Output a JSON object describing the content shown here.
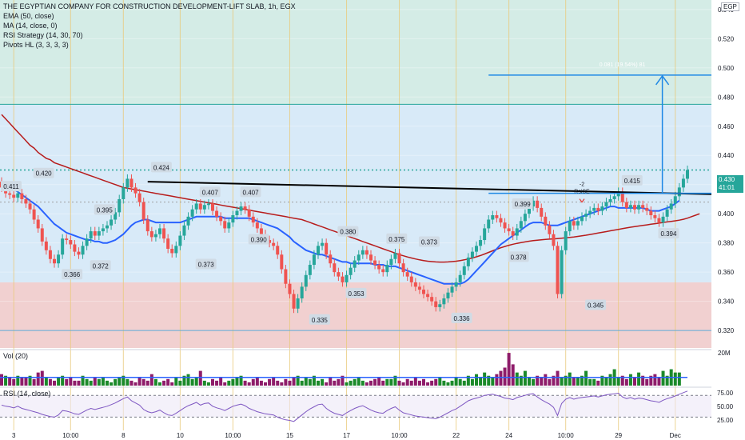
{
  "legend": {
    "title": "THE EGYPTIAN COMPANY FOR CONSTRUCTION DEVELOPMENT-LIFT SLAB, 1h, EGX",
    "ema": "EMA (50, close)",
    "ma": "MA (14, close, 0)",
    "rsi_strategy": "RSI Strategy (14, 30, 70)",
    "pivots": "Pivots HL (3, 3, 3, 3)"
  },
  "currency": "EGP",
  "last_price": "0.430",
  "countdown": "41:01",
  "volume_label": "Vol (20)",
  "rsi_label": "RSI (14, close)",
  "colors": {
    "up": "#26a69a",
    "down": "#ef5350",
    "ema": "#b71c1c",
    "ma": "#2962ff",
    "vol_up": "#1b8a2a",
    "vol_down": "#8e1c6a",
    "rsi": "#7e57c2",
    "top_zone": "#d4ece6",
    "mid_zone": "#d8eaf8",
    "low_zone": "#f1d0d0"
  },
  "chart_data": {
    "type": "line",
    "price_axis": {
      "ylim": [
        0.308,
        0.5465
      ],
      "ticks": [
        "0.540",
        "0.520",
        "0.500",
        "0.480",
        "0.460",
        "0.440",
        "0.420",
        "0.400",
        "0.380",
        "0.360",
        "0.340",
        "0.320"
      ]
    },
    "x_tick_labels": [
      "3",
      "10:00",
      "8",
      "10",
      "10:00",
      "15",
      "17",
      "10:00",
      "22",
      "24",
      "10:00",
      "29",
      "Dec"
    ],
    "close_series": [
      0.418,
      0.414,
      0.413,
      0.411,
      0.414,
      0.41,
      0.407,
      0.403,
      0.396,
      0.39,
      0.381,
      0.375,
      0.369,
      0.366,
      0.372,
      0.383,
      0.382,
      0.379,
      0.374,
      0.372,
      0.378,
      0.383,
      0.388,
      0.385,
      0.388,
      0.39,
      0.392,
      0.396,
      0.401,
      0.41,
      0.418,
      0.424,
      0.418,
      0.414,
      0.408,
      0.396,
      0.388,
      0.384,
      0.386,
      0.39,
      0.383,
      0.376,
      0.373,
      0.378,
      0.385,
      0.392,
      0.398,
      0.403,
      0.407,
      0.403,
      0.406,
      0.407,
      0.402,
      0.398,
      0.395,
      0.39,
      0.394,
      0.399,
      0.402,
      0.405,
      0.403,
      0.398,
      0.394,
      0.39,
      0.386,
      0.382,
      0.38,
      0.378,
      0.372,
      0.362,
      0.352,
      0.345,
      0.335,
      0.342,
      0.35,
      0.358,
      0.365,
      0.372,
      0.378,
      0.38,
      0.372,
      0.366,
      0.36,
      0.357,
      0.353,
      0.358,
      0.363,
      0.368,
      0.372,
      0.375,
      0.372,
      0.368,
      0.365,
      0.362,
      0.36,
      0.365,
      0.369,
      0.373,
      0.366,
      0.36,
      0.357,
      0.353,
      0.35,
      0.348,
      0.345,
      0.343,
      0.34,
      0.336,
      0.338,
      0.342,
      0.346,
      0.35,
      0.353,
      0.358,
      0.364,
      0.37,
      0.374,
      0.378,
      0.382,
      0.39,
      0.396,
      0.399,
      0.397,
      0.394,
      0.39,
      0.388,
      0.385,
      0.39,
      0.395,
      0.4,
      0.405,
      0.409,
      0.404,
      0.398,
      0.392,
      0.386,
      0.378,
      0.345,
      0.375,
      0.388,
      0.395,
      0.392,
      0.395,
      0.398,
      0.4,
      0.402,
      0.404,
      0.402,
      0.405,
      0.408,
      0.41,
      0.412,
      0.415,
      0.408,
      0.404,
      0.406,
      0.403,
      0.406,
      0.404,
      0.402,
      0.399,
      0.397,
      0.394,
      0.398,
      0.403,
      0.407,
      0.412,
      0.418,
      0.424,
      0.43
    ],
    "ema_50": [
      0.468,
      0.465,
      0.462,
      0.459,
      0.456,
      0.453,
      0.45,
      0.447,
      0.445,
      0.442,
      0.44,
      0.438,
      0.437,
      0.435,
      0.434,
      0.433,
      0.432,
      0.431,
      0.43,
      0.429,
      0.428,
      0.427,
      0.426,
      0.425,
      0.424,
      0.423,
      0.422,
      0.421,
      0.42,
      0.419,
      0.418,
      0.4175,
      0.417,
      0.4165,
      0.416,
      0.4155,
      0.415,
      0.4145,
      0.414,
      0.4135,
      0.413,
      0.4125,
      0.412,
      0.4115,
      0.411,
      0.4105,
      0.41,
      0.4095,
      0.409,
      0.4085,
      0.408,
      0.4075,
      0.407,
      0.4065,
      0.406,
      0.4055,
      0.405,
      0.4045,
      0.404,
      0.4035,
      0.403,
      0.4025,
      0.402,
      0.4015,
      0.401,
      0.4005,
      0.4,
      0.3995,
      0.399,
      0.3985,
      0.398,
      0.3975,
      0.397,
      0.3965,
      0.396,
      0.395,
      0.394,
      0.393,
      0.392,
      0.391,
      0.39,
      0.389,
      0.388,
      0.387,
      0.386,
      0.385,
      0.384,
      0.383,
      0.382,
      0.381,
      0.38,
      0.379,
      0.378,
      0.377,
      0.376,
      0.375,
      0.374,
      0.373,
      0.372,
      0.3712,
      0.3704,
      0.3697,
      0.369,
      0.3684,
      0.3679,
      0.3675,
      0.3672,
      0.367,
      0.3669,
      0.3669,
      0.367,
      0.3672,
      0.3675,
      0.3679,
      0.3684,
      0.369,
      0.3697,
      0.3705,
      0.3714,
      0.3724,
      0.3735,
      0.3746,
      0.3757,
      0.3767,
      0.3776,
      0.3784,
      0.3791,
      0.3797,
      0.3802,
      0.3807,
      0.3812,
      0.3816,
      0.3819,
      0.3822,
      0.3824,
      0.3826,
      0.3828,
      0.383,
      0.3832,
      0.3835,
      0.3838,
      0.3841,
      0.3845,
      0.3849,
      0.3853,
      0.3858,
      0.3863,
      0.3868,
      0.3873,
      0.3878,
      0.3883,
      0.3888,
      0.3893,
      0.3898,
      0.3903,
      0.3908,
      0.3912,
      0.3916,
      0.392,
      0.3924,
      0.3928,
      0.3932,
      0.3936,
      0.394,
      0.3944,
      0.3948,
      0.3952,
      0.3956,
      0.3962,
      0.397,
      0.398,
      0.399,
      0.4
    ],
    "ma_14": [
      0.42,
      0.419,
      0.418,
      0.417,
      0.415,
      0.413,
      0.411,
      0.409,
      0.407,
      0.405,
      0.402,
      0.399,
      0.396,
      0.393,
      0.391,
      0.389,
      0.387,
      0.386,
      0.385,
      0.384,
      0.383,
      0.382,
      0.382,
      0.381,
      0.381,
      0.38,
      0.38,
      0.381,
      0.382,
      0.384,
      0.386,
      0.389,
      0.392,
      0.394,
      0.395,
      0.396,
      0.396,
      0.395,
      0.394,
      0.394,
      0.394,
      0.394,
      0.394,
      0.394,
      0.394,
      0.395,
      0.396,
      0.397,
      0.398,
      0.398,
      0.398,
      0.398,
      0.398,
      0.398,
      0.398,
      0.397,
      0.397,
      0.397,
      0.397,
      0.397,
      0.397,
      0.397,
      0.396,
      0.395,
      0.394,
      0.393,
      0.392,
      0.391,
      0.39,
      0.388,
      0.386,
      0.384,
      0.381,
      0.379,
      0.377,
      0.375,
      0.374,
      0.373,
      0.372,
      0.372,
      0.371,
      0.37,
      0.369,
      0.368,
      0.367,
      0.367,
      0.366,
      0.366,
      0.366,
      0.366,
      0.366,
      0.366,
      0.365,
      0.365,
      0.365,
      0.364,
      0.364,
      0.364,
      0.363,
      0.362,
      0.361,
      0.36,
      0.359,
      0.358,
      0.357,
      0.356,
      0.355,
      0.354,
      0.353,
      0.352,
      0.352,
      0.352,
      0.352,
      0.352,
      0.353,
      0.355,
      0.358,
      0.361,
      0.364,
      0.367,
      0.37,
      0.373,
      0.376,
      0.379,
      0.381,
      0.383,
      0.385,
      0.387,
      0.389,
      0.391,
      0.393,
      0.394,
      0.394,
      0.394,
      0.393,
      0.392,
      0.392,
      0.392,
      0.393,
      0.394,
      0.395,
      0.396,
      0.397,
      0.398,
      0.399,
      0.4,
      0.401,
      0.402,
      0.403,
      0.404,
      0.405,
      0.405,
      0.404,
      0.404,
      0.404,
      0.404,
      0.404,
      0.404,
      0.404,
      0.403,
      0.402,
      0.402,
      0.402,
      0.403,
      0.404,
      0.405,
      0.407,
      0.409
    ],
    "pivot_labels": [
      {
        "value": 0.411,
        "x": 0
      },
      {
        "value": 0.42,
        "x": 8
      },
      {
        "value": 0.395,
        "x": 23
      },
      {
        "value": 0.366,
        "x": 15
      },
      {
        "value": 0.372,
        "x": 22
      },
      {
        "value": 0.424,
        "x": 37
      },
      {
        "value": 0.373,
        "x": 48
      },
      {
        "value": 0.407,
        "x": 49
      },
      {
        "value": 0.407,
        "x": 59
      },
      {
        "value": 0.39,
        "x": 61
      },
      {
        "value": 0.38,
        "x": 83
      },
      {
        "value": 0.335,
        "x": 76
      },
      {
        "value": 0.353,
        "x": 85
      },
      {
        "value": 0.375,
        "x": 95
      },
      {
        "value": 0.373,
        "x": 103
      },
      {
        "value": 0.336,
        "x": 111
      },
      {
        "value": 0.399,
        "x": 126
      },
      {
        "value": 0.378,
        "x": 125
      },
      {
        "value": 0.345,
        "x": 144
      },
      {
        "value": 0.415,
        "x": 153
      },
      {
        "value": 0.394,
        "x": 162
      }
    ],
    "trendline": {
      "from": [
        36,
        0.422
      ],
      "to": [
        182,
        0.413
      ]
    },
    "measure": {
      "label": "0.081 (19.54%) 81",
      "base": 0.414,
      "target": 0.495,
      "x_range": [
        120,
        182
      ]
    },
    "marker": {
      "lines": [
        "-2",
        "RsiSE"
      ],
      "value": 0.408,
      "x": 143
    },
    "levels": {
      "resistance": 0.475,
      "zone_top_low": 0.353,
      "support": 0.32,
      "dotted_high": 0.43,
      "dotted_mid": 0.408
    },
    "volume": {
      "ticks": [
        "20M"
      ],
      "values": [
        7,
        6,
        5,
        4,
        6,
        5,
        5,
        6,
        4,
        8,
        9,
        5,
        4,
        3,
        5,
        6,
        4,
        5,
        3,
        3,
        6,
        4,
        3,
        5,
        4,
        5,
        3,
        2,
        4,
        5,
        6,
        4,
        3,
        2,
        5,
        4,
        3,
        7,
        4,
        2,
        3,
        4,
        2,
        5,
        3,
        6,
        7,
        4,
        5,
        9,
        3,
        2,
        4,
        3,
        5,
        2,
        3,
        4,
        5,
        6,
        3,
        2,
        4,
        5,
        3,
        2,
        4,
        5,
        3,
        2,
        4,
        3,
        5,
        6,
        3,
        5,
        4,
        6,
        3,
        4,
        2,
        5,
        3,
        4,
        6,
        2,
        3,
        4,
        5,
        3,
        2,
        3,
        4,
        5,
        3,
        4,
        4,
        6,
        3,
        2,
        4,
        3,
        5,
        3,
        4,
        2,
        3,
        4,
        5,
        3,
        2,
        3,
        5,
        4,
        3,
        6,
        4,
        7,
        5,
        8,
        6,
        5,
        7,
        9,
        11,
        20,
        13,
        8,
        6,
        9,
        5,
        4,
        6,
        5,
        7,
        4,
        6,
        9,
        5,
        6,
        8,
        5,
        5,
        6,
        9,
        4,
        4,
        3,
        6,
        5,
        7,
        10,
        5,
        6,
        4,
        7,
        5,
        8,
        6,
        4,
        6,
        7,
        5,
        9,
        6,
        10,
        8,
        8
      ],
      "up": [
        0,
        1,
        0,
        0,
        1,
        0,
        0,
        1,
        0,
        0,
        0,
        1,
        0,
        0,
        1,
        1,
        0,
        0,
        0,
        0,
        1,
        1,
        1,
        0,
        1,
        1,
        1,
        1,
        1,
        1,
        1,
        1,
        0,
        0,
        0,
        0,
        0,
        0,
        1,
        1,
        0,
        0,
        0,
        1,
        1,
        1,
        1,
        1,
        1,
        0,
        1,
        1,
        0,
        0,
        0,
        0,
        1,
        1,
        1,
        1,
        0,
        0,
        0,
        0,
        0,
        0,
        0,
        0,
        0,
        0,
        0,
        0,
        0,
        1,
        1,
        1,
        1,
        1,
        1,
        1,
        0,
        0,
        0,
        0,
        0,
        1,
        1,
        1,
        1,
        1,
        0,
        0,
        0,
        0,
        0,
        1,
        1,
        1,
        0,
        0,
        0,
        0,
        0,
        0,
        0,
        0,
        0,
        0,
        1,
        1,
        1,
        1,
        1,
        1,
        1,
        1,
        1,
        1,
        1,
        1,
        1,
        1,
        0,
        0,
        0,
        0,
        0,
        1,
        1,
        1,
        1,
        1,
        0,
        0,
        0,
        0,
        0,
        0,
        1,
        1,
        1,
        0,
        1,
        1,
        1,
        1,
        1,
        0,
        1,
        1,
        1,
        1,
        1,
        0,
        0,
        1,
        0,
        1,
        0,
        0,
        0,
        0,
        0,
        1,
        1,
        1,
        1,
        1,
        1,
        1
      ],
      "ma": 5
    },
    "rsi": {
      "ticks": [
        "75.00",
        "50.00",
        "25.00"
      ],
      "levels": [
        70,
        30
      ],
      "values": [
        52,
        50,
        49,
        47,
        50,
        46,
        44,
        42,
        40,
        38,
        35,
        33,
        31,
        30,
        34,
        42,
        41,
        39,
        36,
        35,
        39,
        43,
        46,
        44,
        46,
        48,
        50,
        53,
        56,
        60,
        64,
        67,
        60,
        56,
        52,
        44,
        40,
        38,
        40,
        43,
        38,
        34,
        33,
        37,
        42,
        47,
        51,
        54,
        57,
        52,
        55,
        56,
        50,
        47,
        45,
        42,
        46,
        50,
        52,
        54,
        51,
        46,
        43,
        40,
        38,
        36,
        35,
        34,
        30,
        27,
        25,
        24,
        22,
        28,
        34,
        40,
        45,
        49,
        53,
        54,
        46,
        41,
        37,
        35,
        33,
        38,
        42,
        46,
        49,
        51,
        47,
        43,
        40,
        38,
        37,
        42,
        46,
        49,
        43,
        38,
        36,
        34,
        32,
        31,
        30,
        29,
        28,
        27,
        30,
        34,
        38,
        42,
        45,
        50,
        55,
        60,
        63,
        65,
        67,
        70,
        71,
        72,
        70,
        68,
        65,
        64,
        62,
        66,
        68,
        70,
        72,
        73,
        67,
        62,
        58,
        54,
        48,
        33,
        55,
        63,
        66,
        63,
        65,
        66,
        67,
        68,
        69,
        67,
        69,
        71,
        72,
        73,
        74,
        67,
        64,
        66,
        63,
        65,
        64,
        62,
        60,
        59,
        57,
        61,
        64,
        66,
        69,
        72,
        75,
        78
      ]
    }
  }
}
